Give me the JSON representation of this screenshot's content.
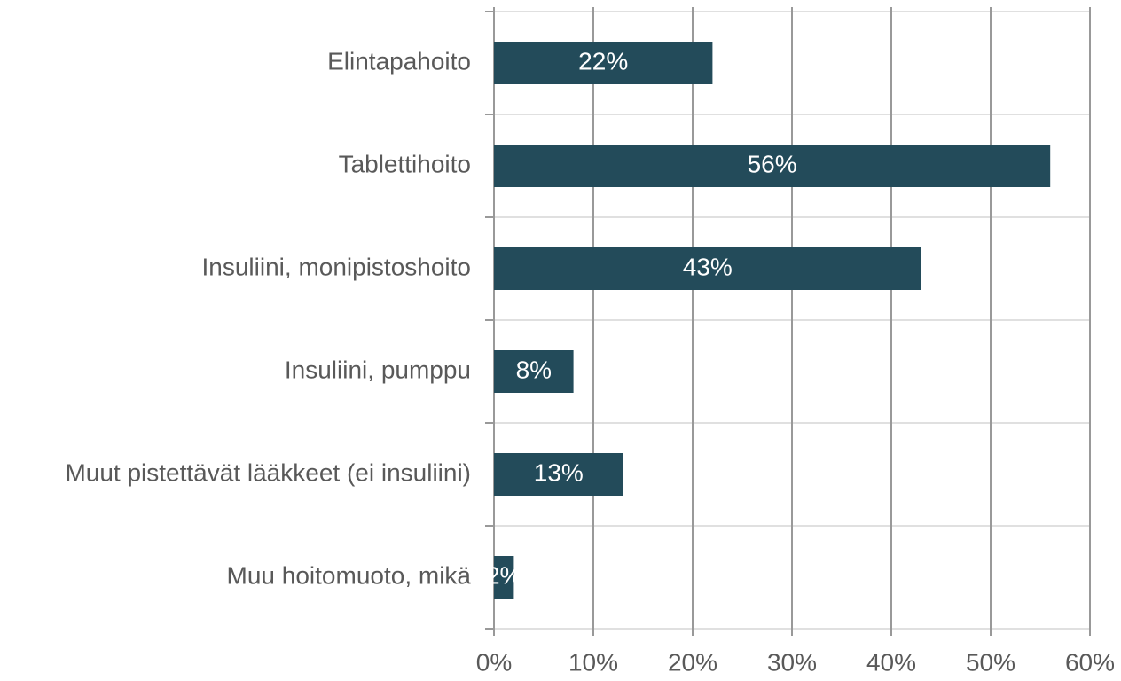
{
  "chart_data": {
    "type": "barh",
    "categories": [
      "Elintapahoito",
      "Tablettihoito",
      "Insuliini, monipistoshoito",
      "Insuliini, pumppu",
      "Muut pistettävät lääkkeet (ei insuliini)",
      "Muu hoitomuoto, mikä"
    ],
    "values": [
      22,
      56,
      43,
      8,
      13,
      2
    ],
    "value_labels": [
      "22%",
      "56%",
      "43%",
      "8%",
      "13%",
      "2%"
    ],
    "color": "#234b5a",
    "xlim": [
      0,
      60
    ],
    "xticks": [
      {
        "value": 0,
        "label": "0%"
      },
      {
        "value": 10,
        "label": "10%"
      },
      {
        "value": 20,
        "label": "20%"
      },
      {
        "value": 30,
        "label": "30%"
      },
      {
        "value": 40,
        "label": "40%"
      },
      {
        "value": 50,
        "label": "50%"
      },
      {
        "value": 60,
        "label": "60%"
      }
    ],
    "grid": true
  }
}
